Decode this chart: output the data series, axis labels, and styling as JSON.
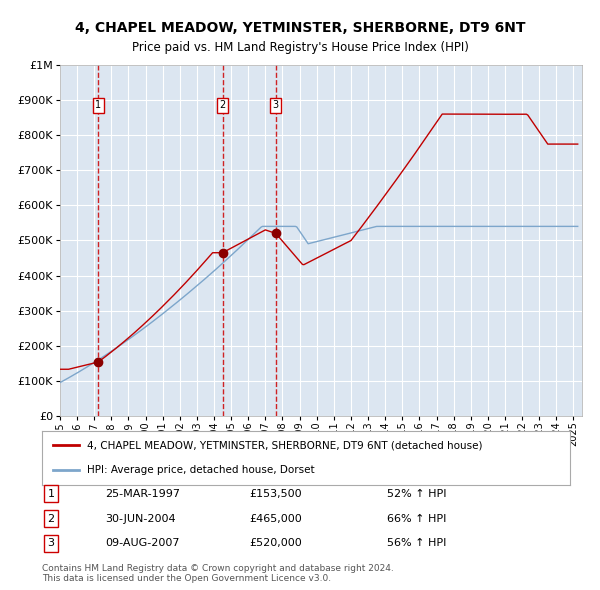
{
  "title": "4, CHAPEL MEADOW, YETMINSTER, SHERBORNE, DT9 6NT",
  "subtitle": "Price paid vs. HM Land Registry's House Price Index (HPI)",
  "bg_color": "#dce6f1",
  "red_line_color": "#c00000",
  "blue_line_color": "#7da6cb",
  "purchases": [
    {
      "date_num": 1997.23,
      "price": 153500,
      "label": "1"
    },
    {
      "date_num": 2004.5,
      "price": 465000,
      "label": "2"
    },
    {
      "date_num": 2007.61,
      "price": 520000,
      "label": "3"
    }
  ],
  "vline_dates": [
    1997.23,
    2004.5,
    2007.61
  ],
  "table_rows": [
    [
      "1",
      "25-MAR-1997",
      "£153,500",
      "52% ↑ HPI"
    ],
    [
      "2",
      "30-JUN-2004",
      "£465,000",
      "66% ↑ HPI"
    ],
    [
      "3",
      "09-AUG-2007",
      "£520,000",
      "56% ↑ HPI"
    ]
  ],
  "legend_entries": [
    "4, CHAPEL MEADOW, YETMINSTER, SHERBORNE, DT9 6NT (detached house)",
    "HPI: Average price, detached house, Dorset"
  ],
  "footnote": "Contains HM Land Registry data © Crown copyright and database right 2024.\nThis data is licensed under the Open Government Licence v3.0.",
  "ylim": [
    0,
    1000000
  ],
  "xlim": [
    1995,
    2025.5
  ]
}
